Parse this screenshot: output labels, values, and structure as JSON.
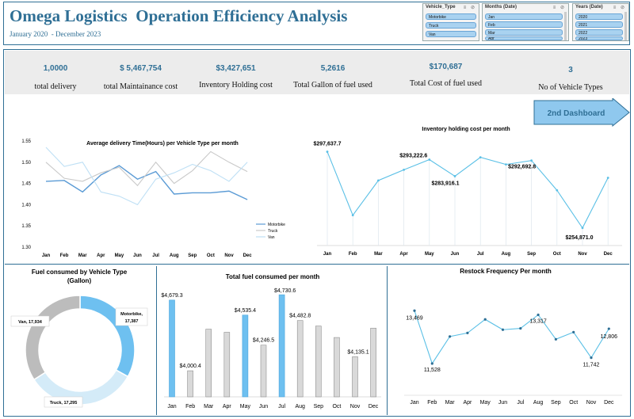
{
  "header": {
    "title": "Omega Logistics  Operation Efficiency Analysis",
    "subtitle": "January 2020  - December 2023"
  },
  "slicers": {
    "vehicle": {
      "title": "Vehicle_Type",
      "items": [
        "Motorbike",
        "Truck",
        "Van"
      ]
    },
    "months": {
      "title": "Months (Date)",
      "items": [
        "Jan",
        "Feb",
        "Mar",
        "Apr"
      ]
    },
    "years": {
      "title": "Years (Date)",
      "items": [
        "2020",
        "2021",
        "2022",
        "2023"
      ]
    }
  },
  "kpis": [
    {
      "value": "1,0000",
      "label": "total delivery"
    },
    {
      "value": "$ 5,467,754",
      "label": "total Maintainance cost"
    },
    {
      "value": "$3,427,651",
      "label": "Inventory Holding cost"
    },
    {
      "value": "5,2616",
      "label": "Total Gallon of fuel used"
    },
    {
      "value": "$170,687",
      "label": "Total Cost of fuel used"
    },
    {
      "value": "3",
      "label": "No of Vehicle Types"
    }
  ],
  "nav_button": {
    "label": "2nd Dashboard",
    "color": "#8fc8ee"
  },
  "chart_data": [
    {
      "id": "avg_delivery",
      "type": "line",
      "title": "Average delivery Time(Hours) per  Vehicle Type per month",
      "categories": [
        "Jan",
        "Feb",
        "Mar",
        "Apr",
        "May",
        "Jun",
        "Jul",
        "Aug",
        "Sep",
        "Oct",
        "Nov",
        "Dec"
      ],
      "yticks": [
        "1.55",
        "1.50",
        "1.45",
        "1.40",
        "1.35",
        "1.30"
      ],
      "ylim": [
        1.3,
        1.55
      ],
      "series": [
        {
          "name": "Motorbike",
          "color": "#5b9bd5",
          "values": [
            1.455,
            1.457,
            1.43,
            1.47,
            1.492,
            1.46,
            1.478,
            1.425,
            1.428,
            1.428,
            1.432,
            1.412
          ]
        },
        {
          "name": "Truck",
          "color": "#c9c9c9",
          "values": [
            1.5,
            1.462,
            1.455,
            1.475,
            1.488,
            1.445,
            1.5,
            1.45,
            1.48,
            1.525,
            1.5,
            1.478
          ]
        },
        {
          "name": "Van",
          "color": "#bfe0f5",
          "values": [
            1.535,
            1.49,
            1.5,
            1.43,
            1.42,
            1.4,
            1.46,
            1.475,
            1.495,
            1.48,
            1.455,
            1.5
          ]
        }
      ],
      "legend": "right"
    },
    {
      "id": "inventory",
      "type": "line",
      "title": "Inventory holding cost per month",
      "categories": [
        "Jan",
        "Feb",
        "Mar",
        "Apr",
        "May",
        "Jun",
        "Jul",
        "Aug",
        "Sep",
        "Oct",
        "Nov",
        "Dec"
      ],
      "values": [
        297637.7,
        262000,
        281500,
        287500,
        293222.6,
        283916.1,
        294500,
        290500,
        292692.8,
        276000,
        254871.0,
        283000
      ],
      "labels": [
        "$297,637.7",
        "",
        "",
        "",
        "$293,222.6",
        "$283,916.1",
        "",
        "",
        "$292,692.8",
        "",
        "$254,871.0",
        ""
      ],
      "ylim": [
        245000,
        305000
      ],
      "color": "#5bc0e6"
    },
    {
      "id": "fuel_by_vehicle",
      "type": "pie",
      "title": "Fuel consumed by Vehicle Type (Gallon)",
      "slices": [
        {
          "name": "Motorbike",
          "value": 17387,
          "label": "Motorbike, 17,387",
          "color": "#6ec0f0"
        },
        {
          "name": "Truck",
          "value": 17295,
          "label": "Truck, 17,295",
          "color": "#d4ebf8"
        },
        {
          "name": "Van",
          "value": 17934,
          "label": "Van, 17,934",
          "color": "#bcbcbc"
        }
      ]
    },
    {
      "id": "total_fuel",
      "type": "bar",
      "title": "Total fuel consumed per month",
      "categories": [
        "Jan",
        "Feb",
        "Mar",
        "Apr",
        "May",
        "Jun",
        "Jul",
        "Aug",
        "Sep",
        "Oct",
        "Nov",
        "Dec"
      ],
      "values": [
        4679.3,
        4000.4,
        4400,
        4370,
        4535.4,
        4246.5,
        4730.6,
        4482.8,
        4430,
        4320,
        4135.1,
        4410
      ],
      "labels": [
        "$4,679.3",
        "$4,000.4",
        "",
        "",
        "$4,535.4",
        "$4,246.5",
        "$4,730.6",
        "$4,482.8",
        "",
        "",
        "$4,135.1",
        ""
      ],
      "highlight": [
        true,
        false,
        false,
        false,
        true,
        false,
        true,
        false,
        false,
        false,
        false,
        false
      ],
      "highlight_color": "#6ec0f0",
      "base_color": "#d9d9d9",
      "ylim": [
        3750,
        4800
      ]
    },
    {
      "id": "restock",
      "type": "line",
      "title": "Restock Frequency Per month",
      "categories": [
        "Jan",
        "Feb",
        "Mar",
        "Apr",
        "May",
        "Jun",
        "Jul",
        "Aug",
        "Sep",
        "Oct",
        "Nov",
        "Dec"
      ],
      "values": [
        13469,
        11528,
        12520,
        12650,
        13150,
        12770,
        12820,
        13317,
        12420,
        12680,
        11742,
        12806
      ],
      "labels": [
        "13,469",
        "11,528",
        "",
        "",
        "",
        "",
        "",
        "13,317",
        "",
        "",
        "11,742",
        "12,806"
      ],
      "ylim": [
        10800,
        14000
      ],
      "color": "#5bc0e6"
    }
  ]
}
